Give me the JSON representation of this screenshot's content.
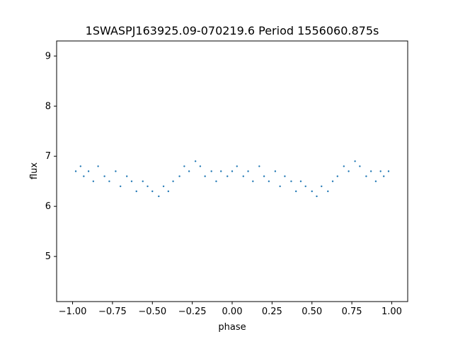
{
  "chart_data": {
    "type": "scatter",
    "title": "1SWASPJ163925.09-070219.6 Period 1556060.875s",
    "xlabel": "phase",
    "ylabel": "flux",
    "xlim": [
      -1.1,
      1.1
    ],
    "ylim": [
      4.1,
      9.3
    ],
    "x_ticks": [
      -1.0,
      -0.75,
      -0.5,
      -0.25,
      0.0,
      0.25,
      0.5,
      0.75,
      1.0
    ],
    "x_tick_labels": [
      "−1.00",
      "−0.75",
      "−0.50",
      "−0.25",
      "0.00",
      "0.25",
      "0.50",
      "0.75",
      "1.00"
    ],
    "y_ticks": [
      5,
      6,
      7,
      8,
      9
    ],
    "y_tick_labels": [
      "5",
      "6",
      "7",
      "8",
      "9"
    ],
    "grid": false,
    "legend": false,
    "point_color": "#1f77b4",
    "series": [
      {
        "x": [
          -0.98,
          -0.95,
          -0.93,
          -0.9,
          -0.87,
          -0.84,
          -0.8,
          -0.77,
          -0.73,
          -0.7,
          -0.66,
          -0.63,
          -0.6,
          -0.56,
          -0.53,
          -0.5,
          -0.46,
          -0.43,
          -0.4,
          -0.37,
          -0.33,
          -0.3,
          -0.27,
          -0.23,
          -0.2,
          -0.17,
          -0.13,
          -0.1,
          -0.07,
          -0.03,
          0.0,
          0.03,
          0.07,
          0.1,
          0.13,
          0.17,
          0.2,
          0.23,
          0.27,
          0.3,
          0.33,
          0.37,
          0.4,
          0.43,
          0.46,
          0.5,
          0.53,
          0.56,
          0.6,
          0.63,
          0.66,
          0.7,
          0.73,
          0.77,
          0.8,
          0.84,
          0.87,
          0.9,
          0.93,
          0.95,
          0.98
        ],
        "y": [
          6.7,
          6.8,
          6.6,
          6.7,
          6.5,
          6.8,
          6.6,
          6.5,
          6.7,
          6.4,
          6.6,
          6.5,
          6.3,
          6.5,
          6.4,
          6.3,
          6.2,
          6.4,
          6.3,
          6.5,
          6.6,
          6.8,
          6.7,
          6.9,
          6.8,
          6.6,
          6.7,
          6.5,
          6.7,
          6.6,
          6.7,
          6.8,
          6.6,
          6.7,
          6.5,
          6.8,
          6.6,
          6.5,
          6.7,
          6.4,
          6.6,
          6.5,
          6.3,
          6.5,
          6.4,
          6.3,
          6.2,
          6.4,
          6.3,
          6.5,
          6.6,
          6.8,
          6.7,
          6.9,
          6.8,
          6.6,
          6.7,
          6.5,
          6.7,
          6.6,
          6.7
        ]
      }
    ]
  }
}
